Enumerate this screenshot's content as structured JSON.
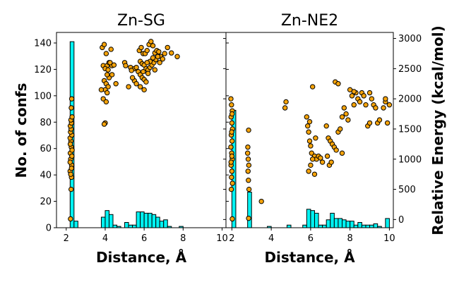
{
  "chart_data": {
    "type": "histogram+scatter",
    "y_left_label": "No. of confs",
    "y_right_label": "Relative Energy (kcal/mol)",
    "y_left_lim": [
      0,
      148
    ],
    "y_left_ticks": [
      0,
      20,
      40,
      60,
      80,
      100,
      120,
      140
    ],
    "y_right_lim": [
      -136,
      3100
    ],
    "y_right_ticks": [
      0,
      500,
      1000,
      1500,
      2000,
      2500,
      3000
    ],
    "colors": {
      "histogram": "#00f2f2",
      "scatter": "#f5a30a",
      "edge": "#000000"
    },
    "panels": [
      {
        "title": "Zn-SG",
        "xlabel": "Distance, Å",
        "xlim": [
          1.5,
          10.2
        ],
        "xticks": [
          2,
          4,
          6,
          8,
          10
        ],
        "histogram": {
          "bin_width": 0.2,
          "bins": [
            {
              "x": 2.2,
              "count": 141
            },
            {
              "x": 2.4,
              "count": 5
            },
            {
              "x": 3.8,
              "count": 8
            },
            {
              "x": 4.0,
              "count": 13
            },
            {
              "x": 4.2,
              "count": 10
            },
            {
              "x": 4.4,
              "count": 2
            },
            {
              "x": 4.6,
              "count": 1
            },
            {
              "x": 5.0,
              "count": 4
            },
            {
              "x": 5.2,
              "count": 2
            },
            {
              "x": 5.4,
              "count": 2
            },
            {
              "x": 5.6,
              "count": 12
            },
            {
              "x": 5.8,
              "count": 12
            },
            {
              "x": 6.0,
              "count": 11
            },
            {
              "x": 6.2,
              "count": 11
            },
            {
              "x": 6.4,
              "count": 10
            },
            {
              "x": 6.6,
              "count": 8
            },
            {
              "x": 6.8,
              "count": 5
            },
            {
              "x": 7.0,
              "count": 6
            },
            {
              "x": 7.2,
              "count": 1
            },
            {
              "x": 7.8,
              "count": 1
            }
          ]
        },
        "scatter": [
          [
            2.22,
            10
          ],
          [
            2.25,
            500
          ],
          [
            2.27,
            700
          ],
          [
            2.2,
            800
          ],
          [
            2.28,
            900
          ],
          [
            2.23,
            1000
          ],
          [
            2.21,
            1100
          ],
          [
            2.26,
            1200
          ],
          [
            2.24,
            1300
          ],
          [
            2.2,
            1350
          ],
          [
            2.29,
            1400
          ],
          [
            2.22,
            1450
          ],
          [
            2.25,
            1500
          ],
          [
            2.21,
            1550
          ],
          [
            2.27,
            1600
          ],
          [
            2.24,
            1650
          ],
          [
            2.3,
            1700
          ],
          [
            2.26,
            1850
          ],
          [
            2.28,
            2000
          ],
          [
            2.2,
            950
          ],
          [
            2.3,
            1150
          ],
          [
            2.23,
            750
          ],
          [
            2.27,
            850
          ],
          [
            2.21,
            1250
          ],
          [
            2.29,
            1050
          ],
          [
            3.85,
            2850
          ],
          [
            3.95,
            2900
          ],
          [
            4.05,
            2750
          ],
          [
            4.3,
            2820
          ],
          [
            3.9,
            2550
          ],
          [
            4.1,
            2550
          ],
          [
            4.2,
            2600
          ],
          [
            4.35,
            2550
          ],
          [
            4.0,
            2500
          ],
          [
            4.15,
            2480
          ],
          [
            3.95,
            2300
          ],
          [
            4.05,
            2250
          ],
          [
            4.15,
            2200
          ],
          [
            4.0,
            2150
          ],
          [
            4.1,
            2100
          ],
          [
            3.9,
            2000
          ],
          [
            4.05,
            1950
          ],
          [
            4.0,
            1600
          ],
          [
            3.95,
            1580
          ],
          [
            4.2,
            2350
          ],
          [
            4.35,
            2400
          ],
          [
            4.25,
            2600
          ],
          [
            4.45,
            2560
          ],
          [
            4.55,
            2250
          ],
          [
            3.8,
            2150
          ],
          [
            4.1,
            2400
          ],
          [
            5.0,
            2600
          ],
          [
            5.05,
            2550
          ],
          [
            5.3,
            2520
          ],
          [
            5.5,
            2500
          ],
          [
            5.6,
            2520
          ],
          [
            5.75,
            2800
          ],
          [
            5.85,
            2850
          ],
          [
            5.95,
            2750
          ],
          [
            6.05,
            2750
          ],
          [
            6.15,
            2800
          ],
          [
            6.25,
            2900
          ],
          [
            6.35,
            2950
          ],
          [
            6.45,
            2880
          ],
          [
            6.55,
            2760
          ],
          [
            6.65,
            2800
          ],
          [
            6.75,
            2780
          ],
          [
            6.85,
            2700
          ],
          [
            6.95,
            2660
          ],
          [
            7.05,
            2750
          ],
          [
            7.2,
            2850
          ],
          [
            7.4,
            2760
          ],
          [
            7.7,
            2700
          ],
          [
            5.8,
            2620
          ],
          [
            5.9,
            2580
          ],
          [
            6.0,
            2560
          ],
          [
            6.1,
            2500
          ],
          [
            6.2,
            2480
          ],
          [
            6.3,
            2520
          ],
          [
            6.4,
            2560
          ],
          [
            6.5,
            2600
          ],
          [
            6.6,
            2650
          ],
          [
            5.7,
            2450
          ],
          [
            5.8,
            2400
          ],
          [
            5.9,
            2350
          ],
          [
            6.0,
            2320
          ],
          [
            6.1,
            2280
          ],
          [
            6.2,
            2420
          ],
          [
            5.5,
            2300
          ],
          [
            5.6,
            2250
          ],
          [
            5.8,
            2200
          ],
          [
            6.0,
            2150
          ],
          [
            6.3,
            2620
          ],
          [
            6.7,
            2700
          ],
          [
            5.2,
            2200
          ],
          [
            5.4,
            2350
          ],
          [
            5.95,
            2450
          ],
          [
            6.15,
            2600
          ],
          [
            6.45,
            2680
          ],
          [
            6.8,
            2600
          ],
          [
            5.35,
            2470
          ],
          [
            6.55,
            2480
          ]
        ]
      },
      {
        "title": "Zn-NE2",
        "xlabel": "Distance, Å",
        "xlim": [
          1.7,
          10.2
        ],
        "xticks": [
          2,
          4,
          6,
          8,
          10
        ],
        "histogram": {
          "bin_width": 0.2,
          "bins": [
            {
              "x": 2.0,
              "count": 89
            },
            {
              "x": 2.8,
              "count": 27
            },
            {
              "x": 3.8,
              "count": 1
            },
            {
              "x": 4.8,
              "count": 2
            },
            {
              "x": 5.6,
              "count": 2
            },
            {
              "x": 5.8,
              "count": 14
            },
            {
              "x": 6.0,
              "count": 13
            },
            {
              "x": 6.2,
              "count": 11
            },
            {
              "x": 6.4,
              "count": 2
            },
            {
              "x": 6.6,
              "count": 2
            },
            {
              "x": 6.8,
              "count": 6
            },
            {
              "x": 7.0,
              "count": 11
            },
            {
              "x": 7.2,
              "count": 7
            },
            {
              "x": 7.4,
              "count": 7
            },
            {
              "x": 7.6,
              "count": 6
            },
            {
              "x": 7.8,
              "count": 5
            },
            {
              "x": 8.0,
              "count": 5
            },
            {
              "x": 8.2,
              "count": 2
            },
            {
              "x": 8.4,
              "count": 4
            },
            {
              "x": 8.6,
              "count": 2
            },
            {
              "x": 8.8,
              "count": 2
            },
            {
              "x": 9.0,
              "count": 2
            },
            {
              "x": 9.2,
              "count": 3
            },
            {
              "x": 9.4,
              "count": 1
            },
            {
              "x": 9.8,
              "count": 7
            }
          ]
        },
        "scatter": [
          [
            1.95,
            2000
          ],
          [
            1.98,
            1900
          ],
          [
            2.02,
            1800
          ],
          [
            1.96,
            1700
          ],
          [
            2.0,
            1600
          ],
          [
            2.03,
            1500
          ],
          [
            1.97,
            1400
          ],
          [
            2.01,
            1300
          ],
          [
            1.95,
            1200
          ],
          [
            1.99,
            1100
          ],
          [
            2.02,
            1000
          ],
          [
            1.96,
            900
          ],
          [
            2.0,
            800
          ],
          [
            1.98,
            700
          ],
          [
            2.03,
            600
          ],
          [
            1.97,
            500
          ],
          [
            2.01,
            1750
          ],
          [
            1.99,
            1450
          ],
          [
            2.0,
            1050
          ],
          [
            1.96,
            950
          ],
          [
            2.02,
            10
          ],
          [
            2.85,
            1480
          ],
          [
            2.8,
            1100
          ],
          [
            2.83,
            1000
          ],
          [
            2.86,
            900
          ],
          [
            2.82,
            800
          ],
          [
            2.84,
            650
          ],
          [
            2.87,
            500
          ],
          [
            2.81,
            1200
          ],
          [
            2.85,
            20
          ],
          [
            3.5,
            300
          ],
          [
            4.7,
            1850
          ],
          [
            4.75,
            1950
          ],
          [
            5.8,
            1700
          ],
          [
            5.85,
            1550
          ],
          [
            5.9,
            1450
          ],
          [
            5.95,
            1300
          ],
          [
            6.0,
            1220
          ],
          [
            6.05,
            1100
          ],
          [
            6.1,
            2200
          ],
          [
            6.2,
            1050
          ],
          [
            6.3,
            1000
          ],
          [
            6.4,
            1050
          ],
          [
            6.5,
            1020
          ],
          [
            6.6,
            950
          ],
          [
            5.9,
            800
          ],
          [
            6.0,
            900
          ],
          [
            6.1,
            1000
          ],
          [
            6.2,
            750
          ],
          [
            5.95,
            1620
          ],
          [
            6.25,
            1350
          ],
          [
            6.8,
            1550
          ],
          [
            6.9,
            1350
          ],
          [
            7.0,
            1300
          ],
          [
            7.1,
            1250
          ],
          [
            7.2,
            1200
          ],
          [
            7.3,
            1150
          ],
          [
            7.4,
            1450
          ],
          [
            7.5,
            1500
          ],
          [
            7.6,
            1700
          ],
          [
            7.7,
            1850
          ],
          [
            7.8,
            1750
          ],
          [
            7.9,
            1650
          ],
          [
            8.0,
            2150
          ],
          [
            8.1,
            2050
          ],
          [
            8.2,
            1900
          ],
          [
            8.3,
            2100
          ],
          [
            8.4,
            2000
          ],
          [
            8.5,
            1950
          ],
          [
            8.6,
            2100
          ],
          [
            8.7,
            2050
          ],
          [
            8.8,
            1900
          ],
          [
            8.9,
            1550
          ],
          [
            9.0,
            1600
          ],
          [
            9.1,
            2000
          ],
          [
            9.2,
            1900
          ],
          [
            9.3,
            1850
          ],
          [
            9.4,
            1600
          ],
          [
            9.5,
            1650
          ],
          [
            9.7,
            1850
          ],
          [
            9.8,
            1950
          ],
          [
            9.9,
            1600
          ],
          [
            10.0,
            1900
          ],
          [
            7.25,
            2280
          ],
          [
            7.4,
            2250
          ],
          [
            6.85,
            1050
          ],
          [
            6.95,
            900
          ],
          [
            7.05,
            950
          ],
          [
            7.6,
            1100
          ],
          [
            8.2,
            2120
          ],
          [
            9.0,
            2100
          ],
          [
            9.8,
            2000
          ]
        ]
      }
    ]
  }
}
